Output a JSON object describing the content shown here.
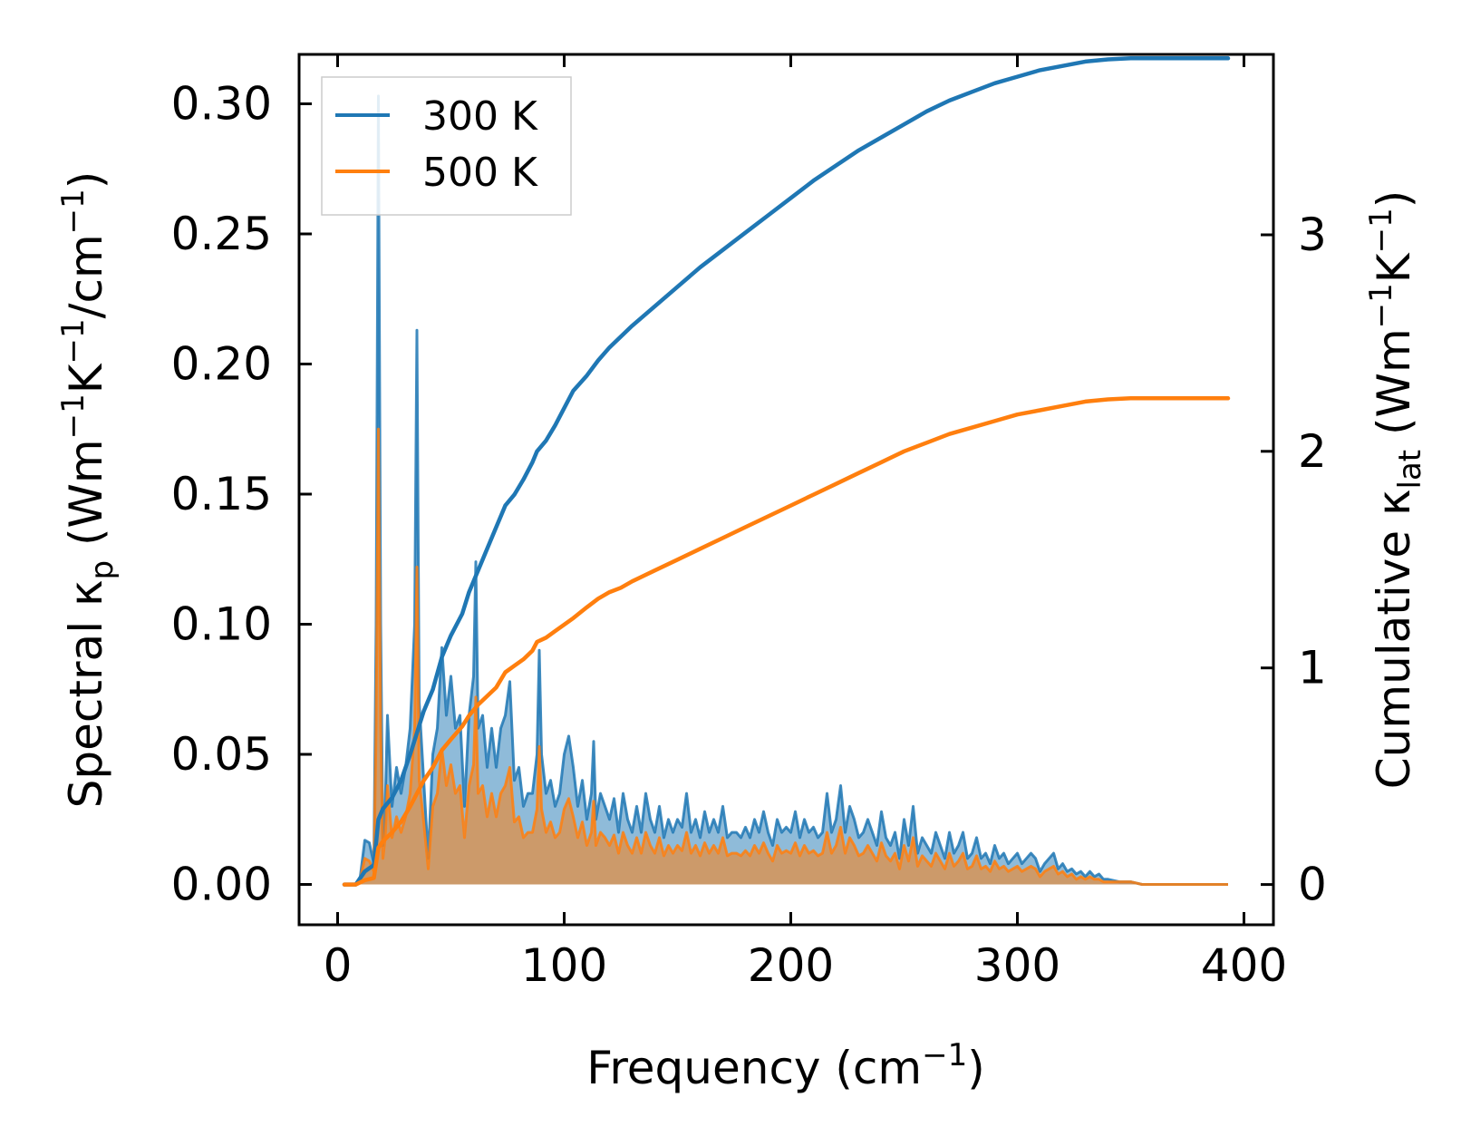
{
  "chart_data": {
    "type": "line",
    "title": "",
    "xlabel": "Frequency (cm⁻¹)",
    "ylabel_left": "Spectral κₚ (Wm⁻¹K⁻¹/cm⁻¹)",
    "ylabel_right": "Cumulative κ_lat (Wm⁻¹K⁻¹)",
    "xlim": [
      -17,
      413
    ],
    "ylim_left": [
      -0.0155,
      0.319
    ],
    "ylim_right": [
      -0.186,
      3.833
    ],
    "x_ticks": [
      0,
      100,
      200,
      300,
      400
    ],
    "x_tick_labels": [
      "0",
      "100",
      "200",
      "300",
      "400"
    ],
    "y_left_ticks": [
      0.0,
      0.05,
      0.1,
      0.15,
      0.2,
      0.25,
      0.3
    ],
    "y_left_tick_labels": [
      "0.00",
      "0.05",
      "0.10",
      "0.15",
      "0.20",
      "0.25",
      "0.30"
    ],
    "y_right_ticks": [
      0,
      1,
      2,
      3
    ],
    "y_right_tick_labels": [
      "0",
      "1",
      "2",
      "3"
    ],
    "legend_position": "top-left",
    "colors": {
      "s300": "#1f77b4",
      "s500": "#ff7f0e"
    },
    "series": [
      {
        "name": "300 K",
        "spectral": {
          "x": [
            3,
            8,
            10,
            12,
            14,
            16,
            17,
            18,
            19,
            20,
            21,
            22,
            24,
            26,
            28,
            30,
            32,
            34,
            35,
            36,
            38,
            40,
            42,
            44,
            46,
            48,
            50,
            52,
            54,
            56,
            58,
            60,
            61,
            62,
            64,
            66,
            68,
            70,
            72,
            74,
            76,
            78,
            80,
            82,
            84,
            86,
            88,
            89,
            90,
            92,
            94,
            96,
            98,
            100,
            102,
            104,
            106,
            108,
            110,
            112,
            113,
            114,
            116,
            118,
            120,
            122,
            124,
            126,
            128,
            130,
            132,
            134,
            136,
            138,
            140,
            142,
            144,
            146,
            148,
            150,
            152,
            154,
            156,
            158,
            160,
            162,
            164,
            166,
            168,
            170,
            172,
            174,
            176,
            178,
            180,
            182,
            184,
            186,
            188,
            190,
            192,
            194,
            196,
            198,
            200,
            202,
            204,
            206,
            208,
            210,
            212,
            214,
            216,
            218,
            220,
            222,
            224,
            226,
            228,
            230,
            232,
            234,
            236,
            238,
            240,
            242,
            244,
            246,
            248,
            250,
            252,
            254,
            256,
            258,
            260,
            262,
            264,
            266,
            268,
            270,
            272,
            274,
            276,
            278,
            280,
            282,
            284,
            286,
            288,
            290,
            292,
            294,
            296,
            298,
            300,
            302,
            304,
            306,
            308,
            310,
            312,
            314,
            316,
            318,
            320,
            322,
            324,
            326,
            328,
            330,
            332,
            334,
            336,
            338,
            340,
            345,
            350,
            355,
            360,
            370,
            380,
            393
          ],
          "y": [
            0,
            0,
            0.003,
            0.017,
            0.016,
            0.008,
            0.1,
            0.303,
            0.1,
            0.015,
            0.03,
            0.065,
            0.03,
            0.045,
            0.035,
            0.045,
            0.06,
            0.1,
            0.213,
            0.07,
            0.04,
            0.01,
            0.05,
            0.06,
            0.091,
            0.065,
            0.08,
            0.06,
            0.065,
            0.03,
            0.065,
            0.08,
            0.124,
            0.06,
            0.065,
            0.045,
            0.06,
            0.045,
            0.06,
            0.065,
            0.078,
            0.04,
            0.045,
            0.03,
            0.035,
            0.035,
            0.05,
            0.09,
            0.05,
            0.035,
            0.04,
            0.03,
            0.035,
            0.05,
            0.057,
            0.045,
            0.03,
            0.04,
            0.025,
            0.035,
            0.055,
            0.025,
            0.035,
            0.03,
            0.025,
            0.033,
            0.02,
            0.035,
            0.025,
            0.02,
            0.03,
            0.02,
            0.035,
            0.025,
            0.02,
            0.03,
            0.018,
            0.025,
            0.02,
            0.025,
            0.022,
            0.035,
            0.02,
            0.025,
            0.018,
            0.028,
            0.02,
            0.025,
            0.02,
            0.03,
            0.018,
            0.02,
            0.02,
            0.018,
            0.022,
            0.018,
            0.025,
            0.02,
            0.028,
            0.02,
            0.015,
            0.025,
            0.02,
            0.022,
            0.02,
            0.028,
            0.018,
            0.025,
            0.02,
            0.022,
            0.018,
            0.02,
            0.035,
            0.02,
            0.025,
            0.038,
            0.02,
            0.03,
            0.025,
            0.018,
            0.02,
            0.025,
            0.02,
            0.015,
            0.028,
            0.018,
            0.015,
            0.02,
            0.01,
            0.025,
            0.015,
            0.03,
            0.012,
            0.018,
            0.015,
            0.012,
            0.02,
            0.015,
            0.01,
            0.02,
            0.012,
            0.015,
            0.02,
            0.01,
            0.012,
            0.018,
            0.01,
            0.012,
            0.008,
            0.015,
            0.01,
            0.012,
            0.008,
            0.01,
            0.012,
            0.008,
            0.01,
            0.012,
            0.01,
            0.005,
            0.008,
            0.01,
            0.012,
            0.006,
            0.008,
            0.005,
            0.006,
            0.004,
            0.005,
            0.003,
            0.005,
            0.003,
            0.004,
            0.002,
            0.002,
            0.001,
            0.001,
            0,
            0,
            0,
            0,
            0
          ]
        },
        "cumulative": {
          "x": [
            3,
            8,
            12,
            16,
            18,
            20,
            24,
            28,
            32,
            35,
            38,
            42,
            46,
            50,
            55,
            58,
            62,
            66,
            70,
            74,
            78,
            82,
            86,
            88,
            92,
            96,
            100,
            104,
            110,
            115,
            120,
            125,
            130,
            140,
            150,
            160,
            170,
            180,
            190,
            200,
            210,
            220,
            230,
            240,
            250,
            260,
            270,
            280,
            290,
            300,
            310,
            320,
            330,
            340,
            350,
            360,
            370,
            380,
            393
          ],
          "y": [
            0,
            0,
            0.06,
            0.09,
            0.3,
            0.35,
            0.4,
            0.48,
            0.6,
            0.7,
            0.8,
            0.9,
            1.05,
            1.15,
            1.25,
            1.35,
            1.45,
            1.55,
            1.65,
            1.75,
            1.8,
            1.87,
            1.95,
            2.0,
            2.05,
            2.12,
            2.2,
            2.28,
            2.35,
            2.42,
            2.48,
            2.53,
            2.58,
            2.67,
            2.76,
            2.85,
            2.93,
            3.01,
            3.09,
            3.17,
            3.25,
            3.32,
            3.39,
            3.45,
            3.51,
            3.57,
            3.62,
            3.66,
            3.7,
            3.73,
            3.76,
            3.78,
            3.8,
            3.81,
            3.815,
            3.815,
            3.815,
            3.815,
            3.815
          ]
        }
      },
      {
        "name": "500 K",
        "spectral": {
          "x": [
            3,
            8,
            10,
            12,
            14,
            16,
            17,
            18,
            19,
            20,
            21,
            22,
            24,
            26,
            28,
            30,
            32,
            34,
            35,
            36,
            38,
            40,
            42,
            44,
            46,
            48,
            50,
            52,
            54,
            56,
            58,
            60,
            61,
            62,
            64,
            66,
            68,
            70,
            72,
            74,
            76,
            78,
            80,
            82,
            84,
            86,
            88,
            89,
            90,
            92,
            94,
            96,
            98,
            100,
            102,
            104,
            106,
            108,
            110,
            112,
            113,
            114,
            116,
            118,
            120,
            122,
            124,
            126,
            128,
            130,
            132,
            134,
            136,
            138,
            140,
            142,
            144,
            146,
            148,
            150,
            152,
            154,
            156,
            158,
            160,
            162,
            164,
            166,
            168,
            170,
            172,
            174,
            176,
            178,
            180,
            182,
            184,
            186,
            188,
            190,
            192,
            194,
            196,
            198,
            200,
            202,
            204,
            206,
            208,
            210,
            212,
            214,
            216,
            218,
            220,
            222,
            224,
            226,
            228,
            230,
            232,
            234,
            236,
            238,
            240,
            242,
            244,
            246,
            248,
            250,
            252,
            254,
            256,
            258,
            260,
            262,
            264,
            266,
            268,
            270,
            272,
            274,
            276,
            278,
            280,
            282,
            284,
            286,
            288,
            290,
            292,
            294,
            296,
            298,
            300,
            302,
            304,
            306,
            308,
            310,
            312,
            314,
            316,
            318,
            320,
            322,
            324,
            326,
            328,
            330,
            332,
            334,
            336,
            338,
            340,
            345,
            350,
            355,
            360,
            370,
            380,
            393
          ],
          "y": [
            0,
            0,
            0.002,
            0.01,
            0.009,
            0.005,
            0.06,
            0.175,
            0.06,
            0.01,
            0.018,
            0.038,
            0.018,
            0.026,
            0.02,
            0.026,
            0.035,
            0.06,
            0.122,
            0.04,
            0.024,
            0.006,
            0.03,
            0.035,
            0.052,
            0.038,
            0.046,
            0.035,
            0.038,
            0.018,
            0.038,
            0.046,
            0.072,
            0.035,
            0.038,
            0.026,
            0.035,
            0.026,
            0.035,
            0.038,
            0.045,
            0.024,
            0.026,
            0.018,
            0.02,
            0.02,
            0.029,
            0.053,
            0.029,
            0.02,
            0.024,
            0.018,
            0.02,
            0.029,
            0.033,
            0.026,
            0.018,
            0.024,
            0.015,
            0.02,
            0.032,
            0.015,
            0.02,
            0.018,
            0.015,
            0.019,
            0.012,
            0.02,
            0.015,
            0.012,
            0.018,
            0.012,
            0.02,
            0.015,
            0.012,
            0.018,
            0.011,
            0.015,
            0.012,
            0.015,
            0.013,
            0.02,
            0.012,
            0.015,
            0.011,
            0.016,
            0.012,
            0.015,
            0.012,
            0.018,
            0.011,
            0.012,
            0.012,
            0.011,
            0.013,
            0.011,
            0.015,
            0.012,
            0.016,
            0.012,
            0.009,
            0.015,
            0.012,
            0.013,
            0.012,
            0.016,
            0.011,
            0.015,
            0.012,
            0.013,
            0.011,
            0.012,
            0.02,
            0.012,
            0.015,
            0.022,
            0.012,
            0.018,
            0.015,
            0.011,
            0.012,
            0.015,
            0.012,
            0.009,
            0.016,
            0.011,
            0.009,
            0.012,
            0.006,
            0.015,
            0.009,
            0.018,
            0.007,
            0.011,
            0.009,
            0.007,
            0.012,
            0.009,
            0.006,
            0.012,
            0.007,
            0.009,
            0.012,
            0.006,
            0.007,
            0.011,
            0.006,
            0.007,
            0.005,
            0.009,
            0.006,
            0.007,
            0.005,
            0.006,
            0.007,
            0.005,
            0.006,
            0.007,
            0.006,
            0.003,
            0.005,
            0.006,
            0.007,
            0.004,
            0.005,
            0.003,
            0.004,
            0.002,
            0.003,
            0.002,
            0.003,
            0.002,
            0.002,
            0.001,
            0.001,
            0.001,
            0.001,
            0,
            0,
            0,
            0,
            0
          ]
        },
        "cumulative": {
          "x": [
            3,
            8,
            12,
            16,
            18,
            20,
            24,
            28,
            32,
            35,
            38,
            42,
            46,
            50,
            55,
            58,
            62,
            66,
            70,
            74,
            78,
            82,
            86,
            88,
            92,
            96,
            100,
            104,
            110,
            115,
            120,
            125,
            130,
            140,
            150,
            160,
            170,
            180,
            190,
            200,
            210,
            220,
            230,
            240,
            250,
            260,
            270,
            280,
            290,
            300,
            310,
            320,
            330,
            340,
            350,
            360,
            370,
            380,
            393
          ],
          "y": [
            0,
            0,
            0.02,
            0.03,
            0.17,
            0.2,
            0.24,
            0.29,
            0.36,
            0.42,
            0.48,
            0.54,
            0.62,
            0.67,
            0.73,
            0.78,
            0.83,
            0.87,
            0.91,
            0.98,
            1.01,
            1.04,
            1.08,
            1.12,
            1.14,
            1.17,
            1.2,
            1.23,
            1.28,
            1.32,
            1.35,
            1.37,
            1.4,
            1.45,
            1.5,
            1.55,
            1.6,
            1.65,
            1.7,
            1.75,
            1.8,
            1.85,
            1.9,
            1.95,
            2.0,
            2.04,
            2.08,
            2.11,
            2.14,
            2.17,
            2.19,
            2.21,
            2.23,
            2.24,
            2.245,
            2.245,
            2.245,
            2.245,
            2.245
          ]
        }
      }
    ]
  }
}
